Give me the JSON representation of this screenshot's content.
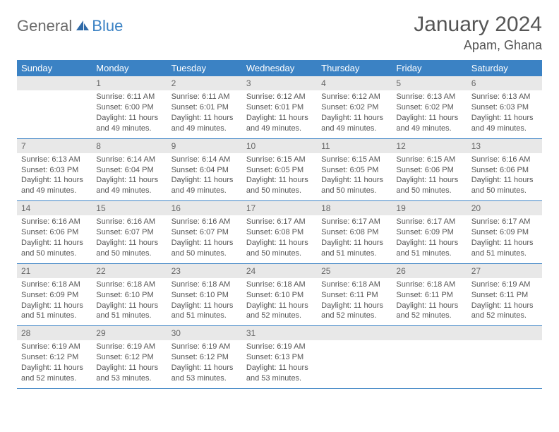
{
  "logo": {
    "general": "General",
    "blue": "Blue"
  },
  "title": {
    "month": "January 2024",
    "location": "Apam, Ghana"
  },
  "colors": {
    "header_bg": "#3b82c4",
    "header_text": "#ffffff",
    "daynum_bg": "#e8e8e8",
    "text": "#555555",
    "rule": "#3b82c4"
  },
  "weekdays": [
    "Sunday",
    "Monday",
    "Tuesday",
    "Wednesday",
    "Thursday",
    "Friday",
    "Saturday"
  ],
  "weeks": [
    [
      null,
      {
        "n": "1",
        "sunrise": "Sunrise: 6:11 AM",
        "sunset": "Sunset: 6:00 PM",
        "day": "Daylight: 11 hours and 49 minutes."
      },
      {
        "n": "2",
        "sunrise": "Sunrise: 6:11 AM",
        "sunset": "Sunset: 6:01 PM",
        "day": "Daylight: 11 hours and 49 minutes."
      },
      {
        "n": "3",
        "sunrise": "Sunrise: 6:12 AM",
        "sunset": "Sunset: 6:01 PM",
        "day": "Daylight: 11 hours and 49 minutes."
      },
      {
        "n": "4",
        "sunrise": "Sunrise: 6:12 AM",
        "sunset": "Sunset: 6:02 PM",
        "day": "Daylight: 11 hours and 49 minutes."
      },
      {
        "n": "5",
        "sunrise": "Sunrise: 6:13 AM",
        "sunset": "Sunset: 6:02 PM",
        "day": "Daylight: 11 hours and 49 minutes."
      },
      {
        "n": "6",
        "sunrise": "Sunrise: 6:13 AM",
        "sunset": "Sunset: 6:03 PM",
        "day": "Daylight: 11 hours and 49 minutes."
      }
    ],
    [
      {
        "n": "7",
        "sunrise": "Sunrise: 6:13 AM",
        "sunset": "Sunset: 6:03 PM",
        "day": "Daylight: 11 hours and 49 minutes."
      },
      {
        "n": "8",
        "sunrise": "Sunrise: 6:14 AM",
        "sunset": "Sunset: 6:04 PM",
        "day": "Daylight: 11 hours and 49 minutes."
      },
      {
        "n": "9",
        "sunrise": "Sunrise: 6:14 AM",
        "sunset": "Sunset: 6:04 PM",
        "day": "Daylight: 11 hours and 49 minutes."
      },
      {
        "n": "10",
        "sunrise": "Sunrise: 6:15 AM",
        "sunset": "Sunset: 6:05 PM",
        "day": "Daylight: 11 hours and 50 minutes."
      },
      {
        "n": "11",
        "sunrise": "Sunrise: 6:15 AM",
        "sunset": "Sunset: 6:05 PM",
        "day": "Daylight: 11 hours and 50 minutes."
      },
      {
        "n": "12",
        "sunrise": "Sunrise: 6:15 AM",
        "sunset": "Sunset: 6:06 PM",
        "day": "Daylight: 11 hours and 50 minutes."
      },
      {
        "n": "13",
        "sunrise": "Sunrise: 6:16 AM",
        "sunset": "Sunset: 6:06 PM",
        "day": "Daylight: 11 hours and 50 minutes."
      }
    ],
    [
      {
        "n": "14",
        "sunrise": "Sunrise: 6:16 AM",
        "sunset": "Sunset: 6:06 PM",
        "day": "Daylight: 11 hours and 50 minutes."
      },
      {
        "n": "15",
        "sunrise": "Sunrise: 6:16 AM",
        "sunset": "Sunset: 6:07 PM",
        "day": "Daylight: 11 hours and 50 minutes."
      },
      {
        "n": "16",
        "sunrise": "Sunrise: 6:16 AM",
        "sunset": "Sunset: 6:07 PM",
        "day": "Daylight: 11 hours and 50 minutes."
      },
      {
        "n": "17",
        "sunrise": "Sunrise: 6:17 AM",
        "sunset": "Sunset: 6:08 PM",
        "day": "Daylight: 11 hours and 50 minutes."
      },
      {
        "n": "18",
        "sunrise": "Sunrise: 6:17 AM",
        "sunset": "Sunset: 6:08 PM",
        "day": "Daylight: 11 hours and 51 minutes."
      },
      {
        "n": "19",
        "sunrise": "Sunrise: 6:17 AM",
        "sunset": "Sunset: 6:09 PM",
        "day": "Daylight: 11 hours and 51 minutes."
      },
      {
        "n": "20",
        "sunrise": "Sunrise: 6:17 AM",
        "sunset": "Sunset: 6:09 PM",
        "day": "Daylight: 11 hours and 51 minutes."
      }
    ],
    [
      {
        "n": "21",
        "sunrise": "Sunrise: 6:18 AM",
        "sunset": "Sunset: 6:09 PM",
        "day": "Daylight: 11 hours and 51 minutes."
      },
      {
        "n": "22",
        "sunrise": "Sunrise: 6:18 AM",
        "sunset": "Sunset: 6:10 PM",
        "day": "Daylight: 11 hours and 51 minutes."
      },
      {
        "n": "23",
        "sunrise": "Sunrise: 6:18 AM",
        "sunset": "Sunset: 6:10 PM",
        "day": "Daylight: 11 hours and 51 minutes."
      },
      {
        "n": "24",
        "sunrise": "Sunrise: 6:18 AM",
        "sunset": "Sunset: 6:10 PM",
        "day": "Daylight: 11 hours and 52 minutes."
      },
      {
        "n": "25",
        "sunrise": "Sunrise: 6:18 AM",
        "sunset": "Sunset: 6:11 PM",
        "day": "Daylight: 11 hours and 52 minutes."
      },
      {
        "n": "26",
        "sunrise": "Sunrise: 6:18 AM",
        "sunset": "Sunset: 6:11 PM",
        "day": "Daylight: 11 hours and 52 minutes."
      },
      {
        "n": "27",
        "sunrise": "Sunrise: 6:19 AM",
        "sunset": "Sunset: 6:11 PM",
        "day": "Daylight: 11 hours and 52 minutes."
      }
    ],
    [
      {
        "n": "28",
        "sunrise": "Sunrise: 6:19 AM",
        "sunset": "Sunset: 6:12 PM",
        "day": "Daylight: 11 hours and 52 minutes."
      },
      {
        "n": "29",
        "sunrise": "Sunrise: 6:19 AM",
        "sunset": "Sunset: 6:12 PM",
        "day": "Daylight: 11 hours and 53 minutes."
      },
      {
        "n": "30",
        "sunrise": "Sunrise: 6:19 AM",
        "sunset": "Sunset: 6:12 PM",
        "day": "Daylight: 11 hours and 53 minutes."
      },
      {
        "n": "31",
        "sunrise": "Sunrise: 6:19 AM",
        "sunset": "Sunset: 6:13 PM",
        "day": "Daylight: 11 hours and 53 minutes."
      },
      null,
      null,
      null
    ]
  ]
}
